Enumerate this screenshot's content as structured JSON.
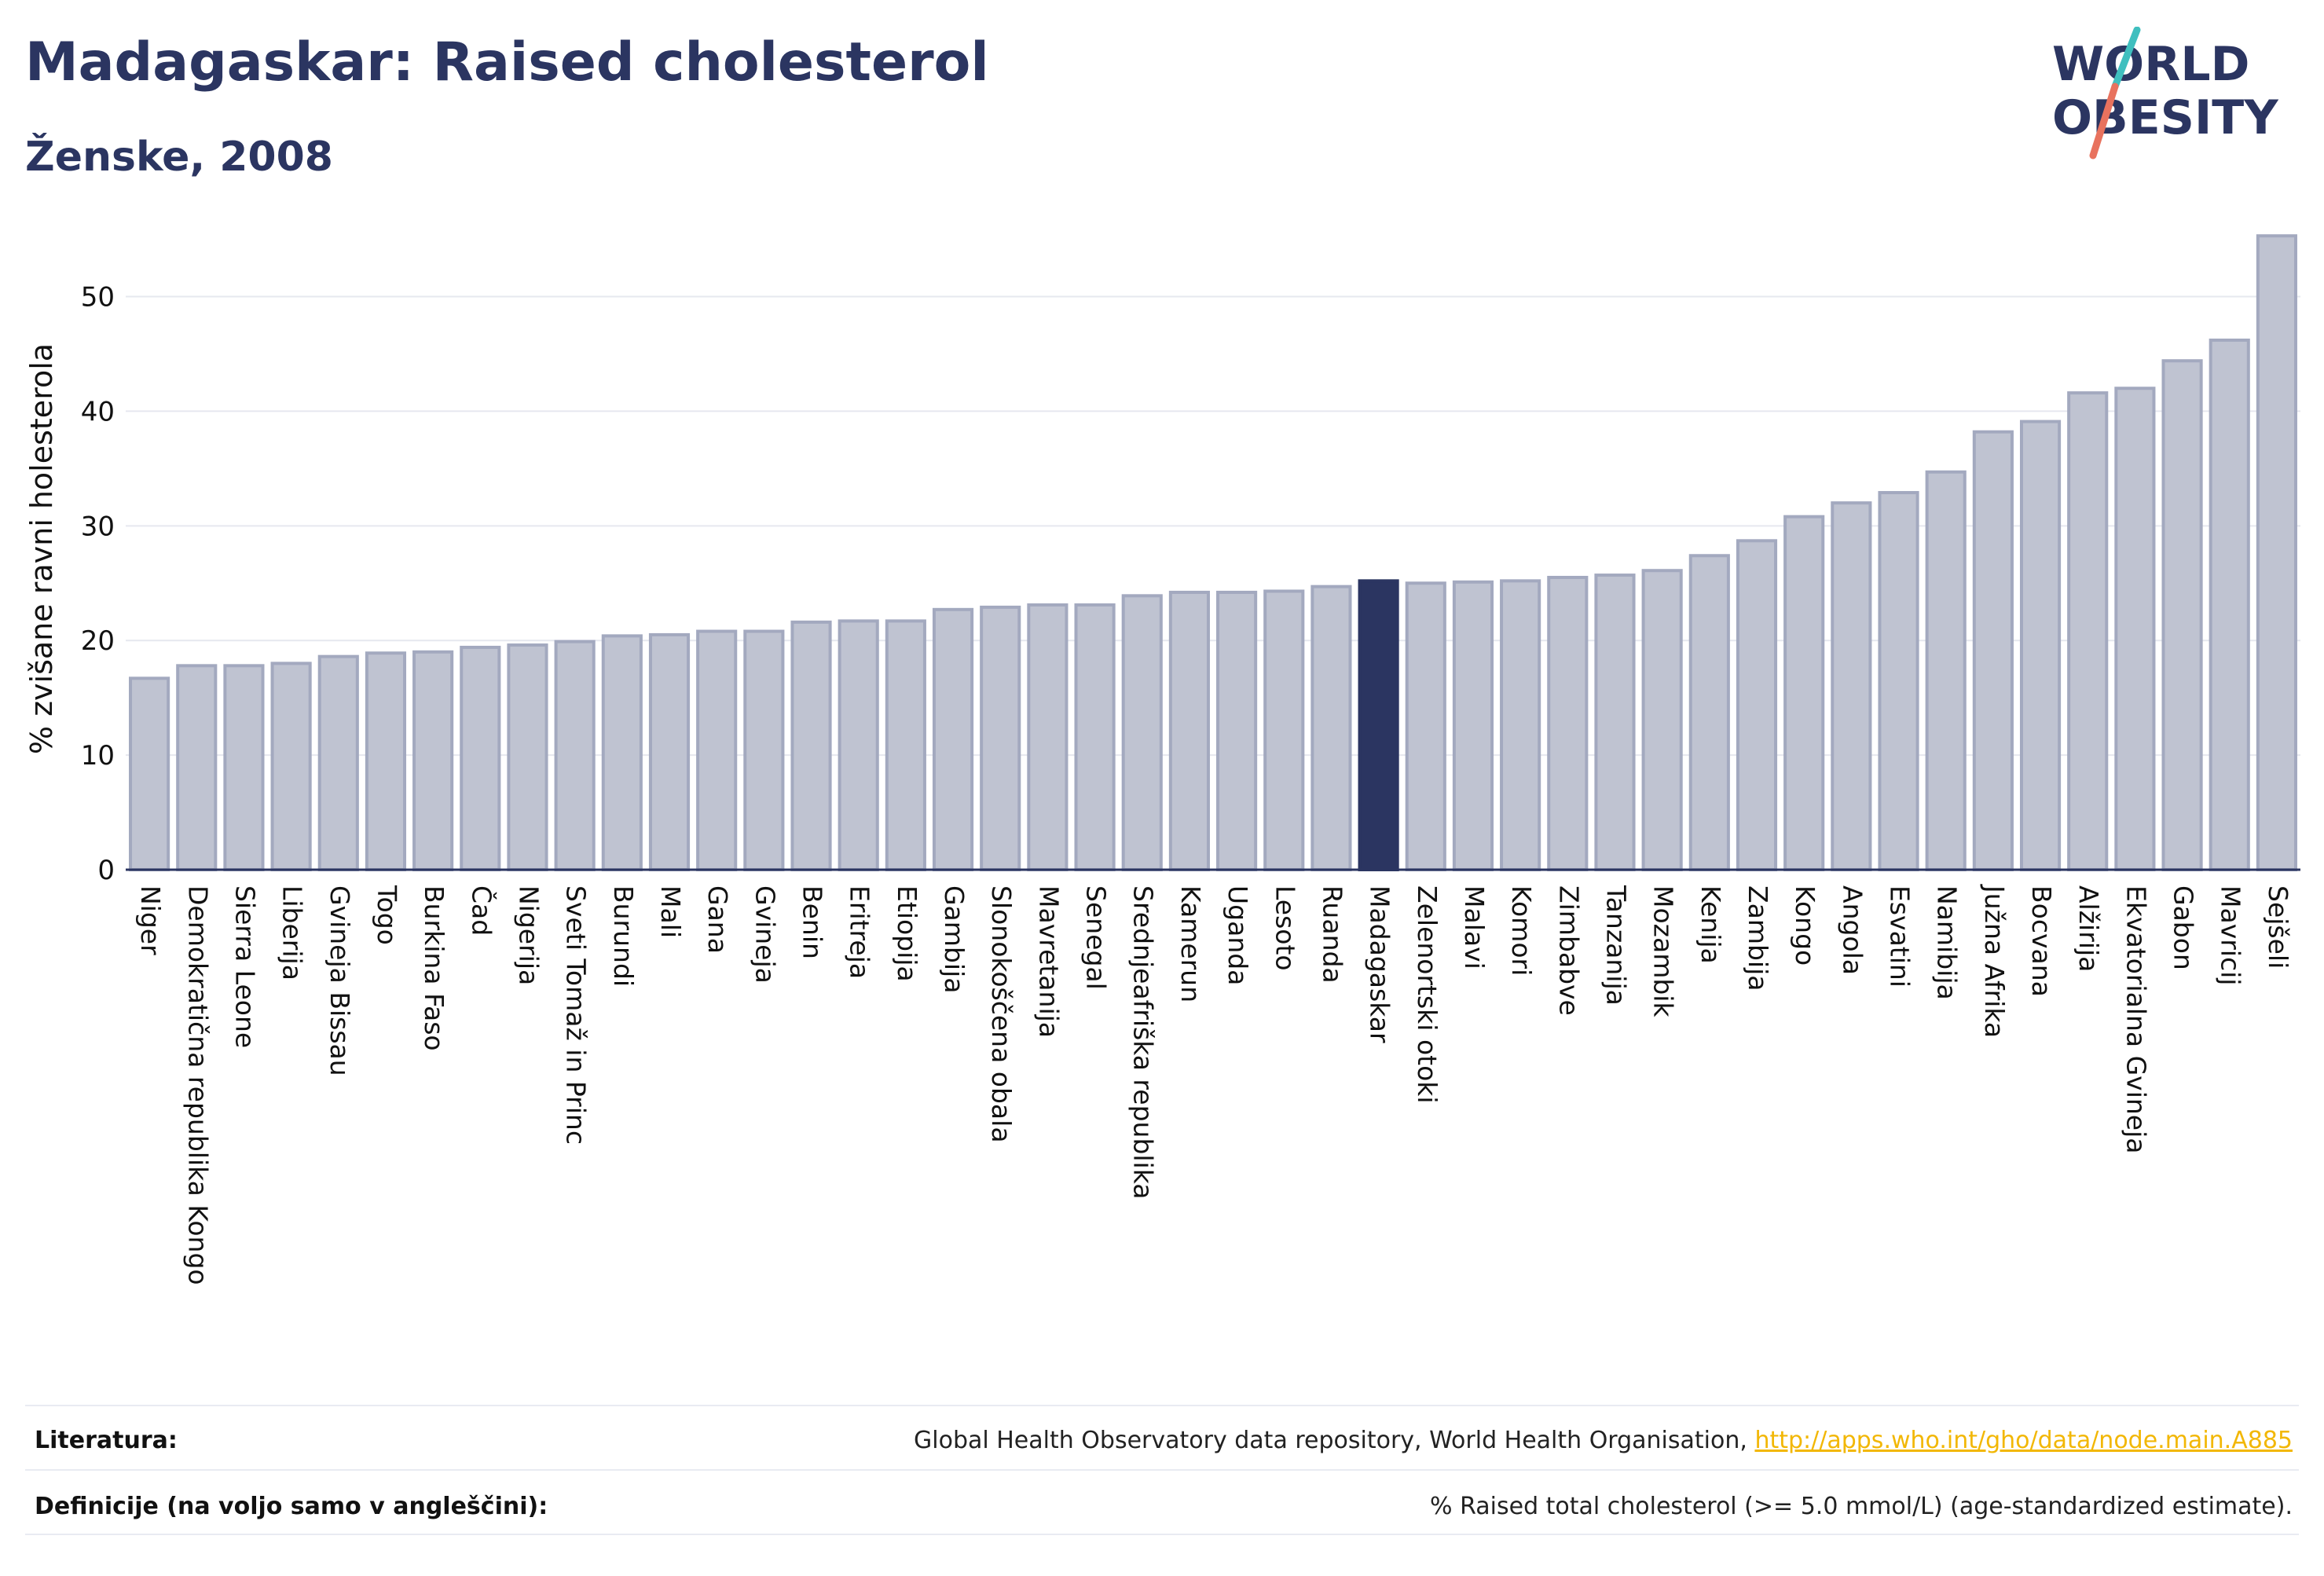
{
  "header": {
    "title": "Madagaskar: Raised cholesterol",
    "subtitle": "Ženske, 2008"
  },
  "logo": {
    "line1": "WORLD",
    "line2": "OBESITY",
    "colors": {
      "text": "#2b3561",
      "slash_teal": "#3fbfbf",
      "slash_coral": "#e8725e"
    }
  },
  "chart_data": {
    "type": "bar",
    "title": "",
    "xlabel": "",
    "ylabel": "% zvišane ravni holesterola",
    "ylim": [
      0,
      56
    ],
    "yticks": [
      0,
      10,
      20,
      30,
      40,
      50
    ],
    "grid": true,
    "highlight": "Madagaskar",
    "colors": {
      "bar": "#bfc3d1",
      "bar_edge": "#a3a9bf",
      "highlight": "#2b3561"
    },
    "categories": [
      "Niger",
      "Demokratična republika Kongo",
      "Sierra Leone",
      "Liberija",
      "Gvineja Bissau",
      "Togo",
      "Burkina Faso",
      "Čad",
      "Nigerija",
      "Sveti Tomaž in Princ",
      "Burundi",
      "Mali",
      "Gana",
      "Gvineja",
      "Benin",
      "Eritreja",
      "Etiopija",
      "Gambija",
      "Slonokoščena obala",
      "Mavretanija",
      "Senegal",
      "Srednjeafriška republika",
      "Kamerun",
      "Uganda",
      "Lesoto",
      "Ruanda",
      "Madagaskar",
      "Zelenortski otoki",
      "Malavi",
      "Komori",
      "Zimbabve",
      "Tanzanija",
      "Mozambik",
      "Kenija",
      "Zambija",
      "Kongo",
      "Angola",
      "Esvatini",
      "Namibija",
      "Južna Afrika",
      "Bocvana",
      "Alžirija",
      "Ekvatorialna Gvineja",
      "Gabon",
      "Mavricij",
      "Sejšeli"
    ],
    "values": [
      16.7,
      17.8,
      17.8,
      18.0,
      18.6,
      18.9,
      19.0,
      19.4,
      19.6,
      19.9,
      20.4,
      20.5,
      20.8,
      20.8,
      21.6,
      21.7,
      21.7,
      22.7,
      22.9,
      23.1,
      23.1,
      23.9,
      24.2,
      24.2,
      24.3,
      24.7,
      25.2,
      25.0,
      25.1,
      25.2,
      25.5,
      25.7,
      26.1,
      27.4,
      28.7,
      30.8,
      32.0,
      32.9,
      34.7,
      38.2,
      39.1,
      41.6,
      42.0,
      44.4,
      46.2,
      55.3
    ]
  },
  "footer": {
    "literature_label": "Literatura:",
    "literature_text": "Global Health Observatory data repository, World Health Organisation, ",
    "literature_link": "http://apps.who.int/gho/data/node.main.A885",
    "definitions_label": "Definicije (na voljo samo v angleščini):",
    "definitions_text": "% Raised total cholesterol (>= 5.0 mmol/L) (age-standardized estimate)."
  }
}
